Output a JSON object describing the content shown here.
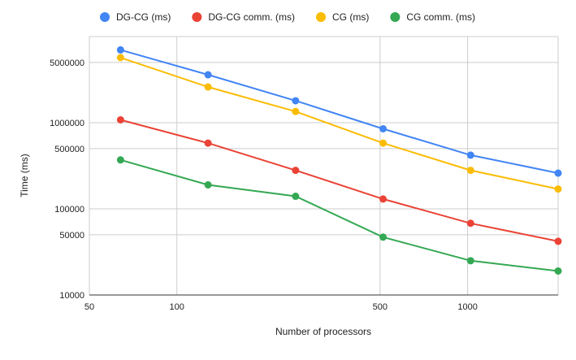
{
  "chart_data": {
    "type": "line",
    "title": "",
    "xlabel": "Number of processors",
    "ylabel": "Time (ms)",
    "xscale": "log",
    "yscale": "log",
    "xlim": [
      50,
      2048
    ],
    "ylim": [
      10000,
      10000000
    ],
    "xticks": [
      50,
      100,
      500,
      1000
    ],
    "xtick_labels": [
      "50",
      "100",
      "500",
      "1000"
    ],
    "yticks": [
      10000,
      50000,
      100000,
      500000,
      1000000,
      5000000
    ],
    "ytick_labels": [
      "10000",
      "50000",
      "100000",
      "500000",
      "1000000",
      "5000000"
    ],
    "x": [
      64,
      128,
      256,
      512,
      1024,
      2048
    ],
    "grid": true,
    "legend_position": "top",
    "series": [
      {
        "name": "DG-CG (ms)",
        "color": "#4285f4",
        "values": [
          7000000,
          3600000,
          1800000,
          850000,
          420000,
          260000
        ]
      },
      {
        "name": "DG-CG comm. (ms)",
        "color": "#ea4335",
        "values": [
          1080000,
          580000,
          280000,
          130000,
          68000,
          42000
        ]
      },
      {
        "name": "CG (ms)",
        "color": "#fbbc04",
        "values": [
          5700000,
          2600000,
          1350000,
          580000,
          280000,
          170000
        ]
      },
      {
        "name": "CG comm. (ms)",
        "color": "#34a853",
        "values": [
          370000,
          190000,
          140000,
          47000,
          25000,
          19000
        ]
      }
    ]
  }
}
